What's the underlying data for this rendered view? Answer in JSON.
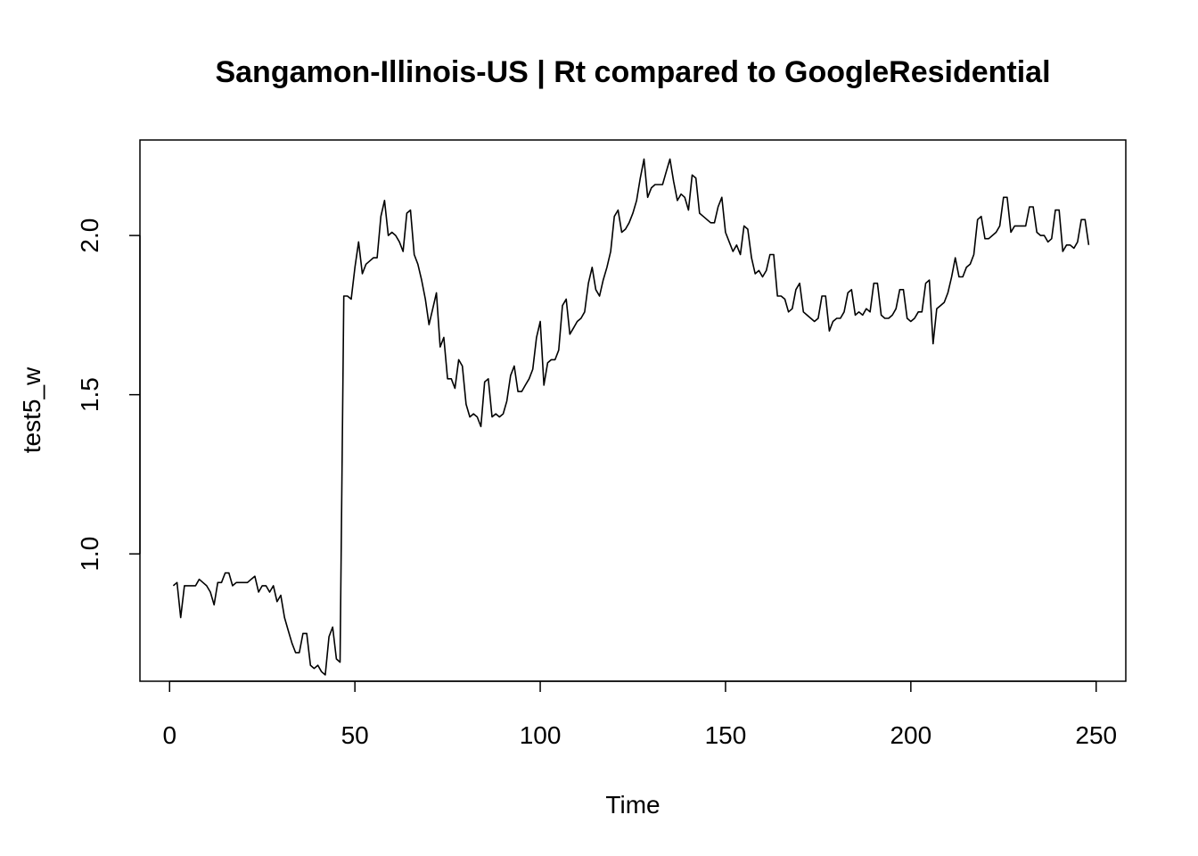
{
  "chart_data": {
    "type": "line",
    "title": "Sangamon-Illinois-US | Rt compared to GoogleResidential",
    "xlabel": "Time",
    "ylabel": "test5_w",
    "xlim": [
      -8,
      258
    ],
    "ylim": [
      0.6,
      2.3
    ],
    "x_ticks": [
      0,
      50,
      100,
      150,
      200,
      250
    ],
    "x_tick_labels": [
      "0",
      "50",
      "100",
      "150",
      "200",
      "250"
    ],
    "y_ticks": [
      1.0,
      1.5,
      2.0
    ],
    "y_tick_labels": [
      "1.0",
      "1.5",
      "2.0"
    ],
    "grid": false,
    "series": [
      {
        "color": "#000000",
        "x": [
          1,
          2,
          3,
          4,
          5,
          6,
          7,
          8,
          9,
          10,
          11,
          12,
          13,
          14,
          15,
          16,
          17,
          18,
          19,
          20,
          21,
          22,
          23,
          24,
          25,
          26,
          27,
          28,
          29,
          30,
          31,
          32,
          33,
          34,
          35,
          36,
          37,
          38,
          39,
          40,
          41,
          42,
          43,
          44,
          45,
          46,
          47,
          48,
          49,
          50,
          51,
          52,
          53,
          54,
          55,
          56,
          57,
          58,
          59,
          60,
          61,
          62,
          63,
          64,
          65,
          66,
          67,
          68,
          69,
          70,
          71,
          72,
          73,
          74,
          75,
          76,
          77,
          78,
          79,
          80,
          81,
          82,
          83,
          84,
          85,
          86,
          87,
          88,
          89,
          90,
          91,
          92,
          93,
          94,
          95,
          96,
          97,
          98,
          99,
          100,
          101,
          102,
          103,
          104,
          105,
          106,
          107,
          108,
          109,
          110,
          111,
          112,
          113,
          114,
          115,
          116,
          117,
          118,
          119,
          120,
          121,
          122,
          123,
          124,
          125,
          126,
          127,
          128,
          129,
          130,
          131,
          132,
          133,
          134,
          135,
          136,
          137,
          138,
          139,
          140,
          141,
          142,
          143,
          144,
          145,
          146,
          147,
          148,
          149,
          150,
          151,
          152,
          153,
          154,
          155,
          156,
          157,
          158,
          159,
          160,
          161,
          162,
          163,
          164,
          165,
          166,
          167,
          168,
          169,
          170,
          171,
          172,
          173,
          174,
          175,
          176,
          177,
          178,
          179,
          180,
          181,
          182,
          183,
          184,
          185,
          186,
          187,
          188,
          189,
          190,
          191,
          192,
          193,
          194,
          195,
          196,
          197,
          198,
          199,
          200,
          201,
          202,
          203,
          204,
          205,
          206,
          207,
          208,
          209,
          210,
          211,
          212,
          213,
          214,
          215,
          216,
          217,
          218,
          219,
          220,
          221,
          222,
          223,
          224,
          225,
          226,
          227,
          228,
          229,
          230,
          231,
          232,
          233,
          234,
          235,
          236,
          237,
          238,
          239,
          240,
          241,
          242,
          243,
          244,
          245,
          246,
          247,
          248
        ],
        "y": [
          0.9,
          0.91,
          0.8,
          0.9,
          0.9,
          0.9,
          0.9,
          0.92,
          0.91,
          0.9,
          0.88,
          0.84,
          0.91,
          0.91,
          0.94,
          0.94,
          0.9,
          0.91,
          0.91,
          0.91,
          0.91,
          0.92,
          0.93,
          0.88,
          0.9,
          0.9,
          0.88,
          0.9,
          0.85,
          0.87,
          0.8,
          0.76,
          0.72,
          0.69,
          0.69,
          0.75,
          0.75,
          0.65,
          0.64,
          0.65,
          0.63,
          0.62,
          0.74,
          0.77,
          0.67,
          0.66,
          1.81,
          1.81,
          1.8,
          1.9,
          1.98,
          1.88,
          1.91,
          1.92,
          1.93,
          1.93,
          2.06,
          2.11,
          2.0,
          2.01,
          2.0,
          1.98,
          1.95,
          2.07,
          2.08,
          1.94,
          1.91,
          1.86,
          1.8,
          1.72,
          1.77,
          1.82,
          1.65,
          1.68,
          1.55,
          1.55,
          1.52,
          1.61,
          1.59,
          1.47,
          1.43,
          1.44,
          1.43,
          1.4,
          1.54,
          1.55,
          1.43,
          1.44,
          1.43,
          1.44,
          1.48,
          1.56,
          1.59,
          1.51,
          1.51,
          1.53,
          1.55,
          1.58,
          1.68,
          1.73,
          1.53,
          1.6,
          1.61,
          1.61,
          1.64,
          1.78,
          1.8,
          1.69,
          1.71,
          1.73,
          1.74,
          1.76,
          1.85,
          1.9,
          1.83,
          1.81,
          1.86,
          1.9,
          1.95,
          2.06,
          2.08,
          2.01,
          2.02,
          2.04,
          2.07,
          2.11,
          2.18,
          2.24,
          2.12,
          2.15,
          2.16,
          2.16,
          2.16,
          2.2,
          2.24,
          2.17,
          2.11,
          2.13,
          2.12,
          2.08,
          2.19,
          2.18,
          2.07,
          2.06,
          2.05,
          2.04,
          2.04,
          2.09,
          2.12,
          2.01,
          1.98,
          1.95,
          1.97,
          1.94,
          2.03,
          2.02,
          1.93,
          1.88,
          1.89,
          1.87,
          1.89,
          1.94,
          1.94,
          1.81,
          1.81,
          1.8,
          1.76,
          1.77,
          1.83,
          1.85,
          1.76,
          1.75,
          1.74,
          1.73,
          1.74,
          1.81,
          1.81,
          1.7,
          1.73,
          1.74,
          1.74,
          1.76,
          1.82,
          1.83,
          1.75,
          1.76,
          1.75,
          1.77,
          1.76,
          1.85,
          1.85,
          1.75,
          1.74,
          1.74,
          1.75,
          1.77,
          1.83,
          1.83,
          1.74,
          1.73,
          1.74,
          1.76,
          1.76,
          1.85,
          1.86,
          1.66,
          1.77,
          1.78,
          1.79,
          1.82,
          1.87,
          1.93,
          1.87,
          1.87,
          1.9,
          1.91,
          1.94,
          2.05,
          2.06,
          1.99,
          1.99,
          2.0,
          2.01,
          2.03,
          2.12,
          2.12,
          2.01,
          2.03,
          2.03,
          2.03,
          2.03,
          2.09,
          2.09,
          2.01,
          2.0,
          2.0,
          1.98,
          1.99,
          2.08,
          2.08,
          1.95,
          1.97,
          1.97,
          1.96,
          1.98,
          2.05,
          2.05,
          1.97
        ]
      }
    ]
  }
}
